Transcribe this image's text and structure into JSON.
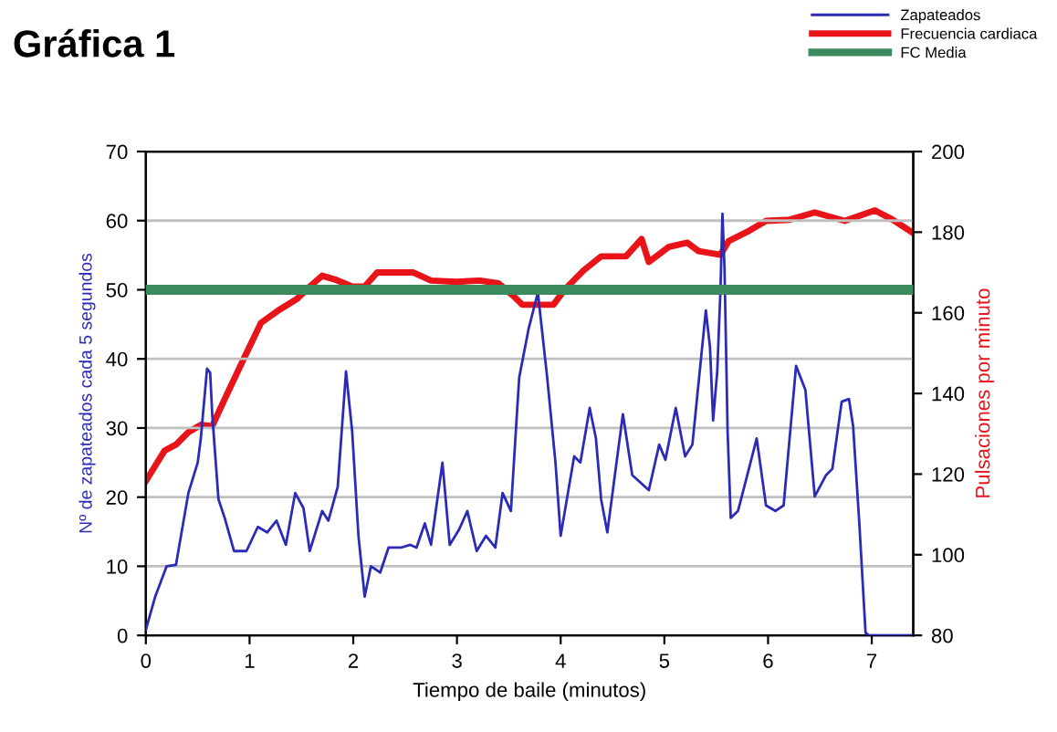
{
  "chart_data": {
    "type": "line",
    "title": "Gráfica 1",
    "xlabel": "Tiempo de baile (minutos)",
    "ylabel": "Nº de zapateados cada 5 segundos",
    "y2label": "Pulsaciones por minuto",
    "xlim": [
      0,
      7.4
    ],
    "xticks": [
      0,
      1,
      2,
      3,
      4,
      5,
      6,
      7
    ],
    "ylim": [
      0,
      70
    ],
    "yticks": [
      0,
      10,
      20,
      30,
      40,
      50,
      60,
      70
    ],
    "y2lim": [
      80,
      200
    ],
    "y2ticks": [
      80,
      100,
      120,
      140,
      160,
      180,
      200
    ],
    "grid": "y",
    "legend": "top right",
    "marker": "none",
    "line_style": "solid",
    "ref_lines": [
      {
        "axis": "y",
        "value": 50,
        "label": "FC Media",
        "color": "#3a8a5e"
      }
    ],
    "series": [
      {
        "name": "Zapateados",
        "color": "#2b2bb8",
        "x": [
          0,
          0.09,
          0.2,
          0.29,
          0.41,
          0.5,
          0.53,
          0.59,
          0.62,
          0.64,
          0.7,
          0.76,
          0.85,
          0.97,
          1.08,
          1.17,
          1.26,
          1.35,
          1.44,
          1.52,
          1.58,
          1.7,
          1.76,
          1.85,
          1.93,
          1.99,
          2.05,
          2.11,
          2.17,
          2.26,
          2.34,
          2.46,
          2.55,
          2.61,
          2.69,
          2.75,
          2.86,
          2.93,
          3.02,
          3.1,
          3.19,
          3.28,
          3.37,
          3.44,
          3.52,
          3.6,
          3.69,
          3.78,
          3.87,
          3.95,
          4.0,
          4.13,
          4.19,
          4.28,
          4.34,
          4.39,
          4.45,
          4.6,
          4.69,
          4.85,
          4.95,
          5.01,
          5.11,
          5.2,
          5.27,
          5.4,
          5.44,
          5.47,
          5.51,
          5.54,
          5.56,
          5.58,
          5.61,
          5.64,
          5.71,
          5.8,
          5.89,
          5.98,
          6.07,
          6.15,
          6.27,
          6.36,
          6.45,
          6.56,
          6.62,
          6.71,
          6.78,
          6.82,
          6.88,
          6.94,
          6.97,
          7.38
        ],
        "values": [
          0.8,
          5.6,
          10,
          10.2,
          20.6,
          25,
          28.5,
          38.6,
          38,
          32,
          19.7,
          17,
          12.2,
          12.2,
          15.7,
          14.9,
          16.6,
          13.1,
          20.6,
          18.4,
          12.2,
          18,
          16.6,
          21.5,
          38.2,
          29.4,
          14.4,
          5.6,
          10,
          9.1,
          12.7,
          12.7,
          13.1,
          12.7,
          16.2,
          13.1,
          25,
          13.1,
          15.3,
          18,
          12.2,
          14.4,
          12.7,
          20.6,
          18,
          37.3,
          44.3,
          49.6,
          37.3,
          25,
          14.4,
          25.9,
          25,
          32.9,
          28.5,
          19.7,
          14.9,
          32,
          23.2,
          21,
          27.6,
          25.4,
          32.9,
          25.9,
          27.6,
          47,
          41.7,
          31.1,
          38.2,
          49.6,
          61,
          53.1,
          29.4,
          17,
          18,
          23.2,
          28.5,
          18.8,
          18,
          18.8,
          39,
          35.5,
          20.1,
          23.2,
          24.1,
          33.8,
          34.2,
          30.3,
          16.2,
          0.4,
          0,
          0
        ]
      },
      {
        "name": "Frecuencia cardiaca",
        "color": "#e8141a",
        "axis": "y2",
        "x": [
          0,
          0.18,
          0.29,
          0.41,
          0.53,
          0.64,
          0.76,
          0.94,
          1.11,
          1.29,
          1.46,
          1.58,
          1.7,
          1.82,
          1.99,
          2.11,
          2.23,
          2.58,
          2.75,
          2.99,
          3.22,
          3.4,
          3.54,
          3.63,
          3.93,
          4.04,
          4.22,
          4.39,
          4.63,
          4.78,
          4.85,
          5.04,
          5.22,
          5.33,
          5.54,
          5.62,
          5.8,
          5.98,
          6.21,
          6.45,
          6.74,
          7.03,
          7.2,
          7.38
        ],
        "values": [
          118.3,
          125.8,
          127.3,
          130.4,
          132.2,
          131.9,
          138.6,
          148.4,
          157.5,
          160.8,
          163.5,
          166.5,
          169.2,
          168.3,
          166.5,
          166.5,
          170,
          170,
          168,
          167.7,
          168,
          167.3,
          164.3,
          162,
          162,
          165.8,
          170.5,
          174,
          174,
          178.3,
          172.6,
          176.3,
          177.4,
          175.3,
          174.4,
          177.8,
          180.1,
          182.8,
          183.1,
          184.9,
          182.8,
          185.4,
          183.1,
          180.1
        ]
      }
    ]
  }
}
